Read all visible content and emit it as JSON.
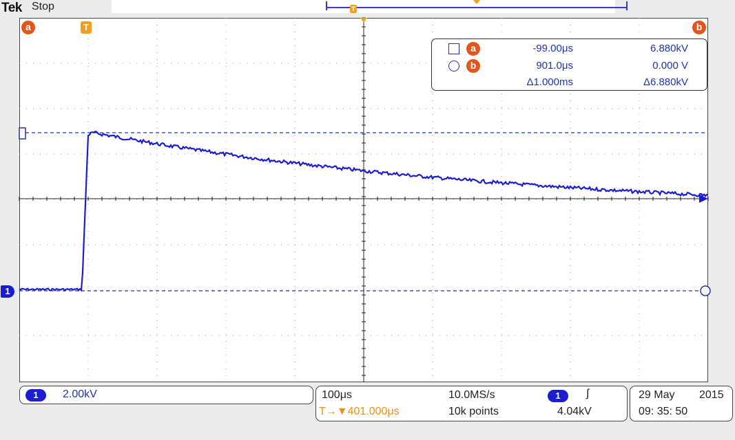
{
  "header": {
    "brand": "Tek",
    "acquisition_state": "Stop"
  },
  "record_view": {
    "trigger_badge": "T"
  },
  "markers": {
    "cursor_a": "a",
    "cursor_b": "b",
    "trigger": "T",
    "ch1": "1"
  },
  "cursor_readout": {
    "a": {
      "time": "-99.00μs",
      "value": "6.880kV"
    },
    "b": {
      "time": "901.0μs",
      "value": "0.000 V"
    },
    "delta": {
      "time": "Δ1.000ms",
      "value": "Δ6.880kV"
    }
  },
  "channel": {
    "number": "1",
    "scale": "2.00kV",
    "color": "#1c1cd0"
  },
  "timebase": {
    "horizontal_scale": "100μs",
    "trigger_position": "T→▼401.000μs",
    "sample_rate": "10.0MS/s",
    "record_length": "10k points"
  },
  "trigger": {
    "source": "1",
    "slope": "∫",
    "level": "4.04kV"
  },
  "datetime": {
    "date_day_month": "29 May",
    "year": "2015",
    "time": "09: 35: 50"
  },
  "colors": {
    "cursor_badge": "#e2561d",
    "trigger": "#f0a020",
    "trace": "#1c1cd0"
  }
}
